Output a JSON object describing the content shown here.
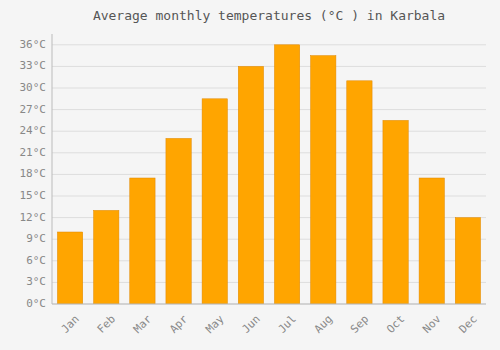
{
  "chart_data": {
    "type": "bar",
    "title": "Average monthly temperatures (°C ) in Karbala",
    "categories": [
      "Jan",
      "Feb",
      "Mar",
      "Apr",
      "May",
      "Jun",
      "Jul",
      "Aug",
      "Sep",
      "Oct",
      "Nov",
      "Dec"
    ],
    "values": [
      10,
      13,
      17.5,
      23,
      28.5,
      33,
      36,
      34.5,
      31,
      25.5,
      17.5,
      12
    ],
    "color": "#FFA500",
    "ylim": [
      0,
      37.5
    ],
    "yticks": [
      {
        "value": 0,
        "label": "0°C"
      },
      {
        "value": 3,
        "label": "3°C"
      },
      {
        "value": 6,
        "label": "6°C"
      },
      {
        "value": 9,
        "label": "9°C"
      },
      {
        "value": 12,
        "label": "12°C"
      },
      {
        "value": 15,
        "label": "15°C"
      },
      {
        "value": 18,
        "label": "18°C"
      },
      {
        "value": 21,
        "label": "21°C"
      },
      {
        "value": 24,
        "label": "24°C"
      },
      {
        "value": 27,
        "label": "27°C"
      },
      {
        "value": 30,
        "label": "30°C"
      },
      {
        "value": 33,
        "label": "33°C"
      },
      {
        "value": 36,
        "label": "36°C"
      }
    ],
    "grid": true
  }
}
